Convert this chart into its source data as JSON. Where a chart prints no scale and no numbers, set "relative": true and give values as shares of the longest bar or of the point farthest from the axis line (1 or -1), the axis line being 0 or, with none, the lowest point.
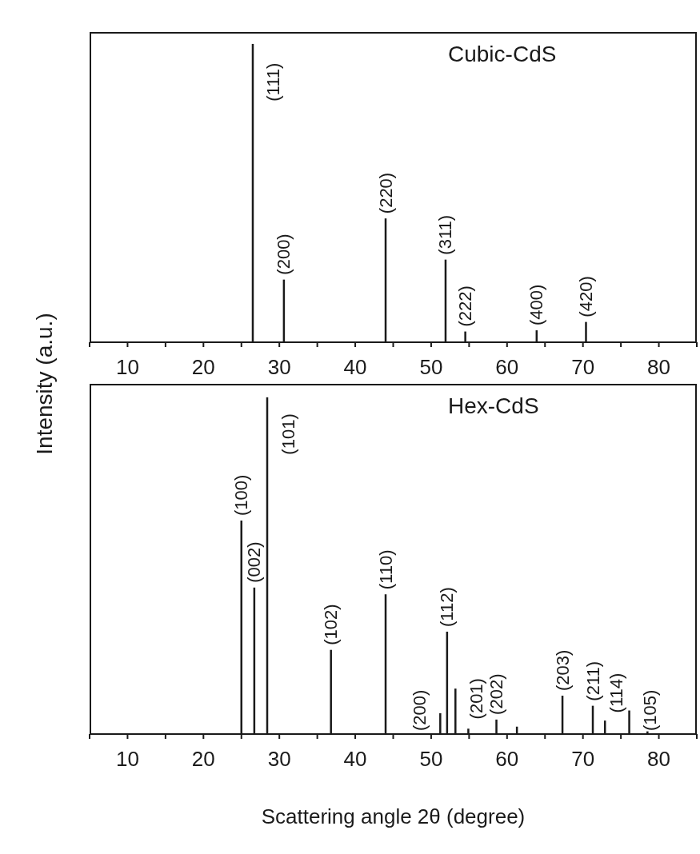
{
  "chart_data": [
    {
      "type": "bar",
      "title": "Cubic-CdS",
      "ylabel": "Intensity (a.u.)",
      "relative": true,
      "tick_labels": "x",
      "color": "#1a1a1a",
      "x": [
        26.5,
        30.6,
        44.0,
        51.9,
        54.5,
        63.9,
        70.4
      ],
      "values": [
        1,
        0.21,
        0.415,
        0.277,
        0.036,
        0.04,
        0.068
      ],
      "xlim": [
        5,
        85
      ],
      "xticks": [
        {
          "value": 5,
          "label": null
        },
        10,
        {
          "value": 15,
          "label": null
        },
        20,
        {
          "value": 25,
          "label": null
        },
        30,
        {
          "value": 35,
          "label": null
        },
        40,
        {
          "value": 45,
          "label": null
        },
        50,
        {
          "value": 55,
          "label": null
        },
        60,
        {
          "value": 65,
          "label": null
        },
        70,
        {
          "value": 75,
          "label": null
        },
        80,
        {
          "value": 85,
          "label": null
        }
      ],
      "annotations": [
        {
          "text": "(111)",
          "x": 26.5,
          "y": 1
        },
        {
          "text": "(200)",
          "x": 30.6,
          "y": 0.21
        },
        {
          "text": "(220)",
          "x": 44.0,
          "y": 0.415
        },
        {
          "text": "(311)",
          "x": 51.9,
          "y": 0.277
        },
        {
          "text": "(222)",
          "x": 54.5,
          "y": 0.036
        },
        {
          "text": "(400)",
          "x": 63.9,
          "y": 0.04
        },
        {
          "text": "(420)",
          "x": 70.4,
          "y": 0.068
        }
      ]
    },
    {
      "type": "bar",
      "title": "Hex-CdS",
      "xlabel": "Scattering angle 2θ (degree)",
      "relative": true,
      "tick_labels": "x",
      "color": "#1a1a1a",
      "x": [
        25.0,
        26.7,
        28.4,
        36.8,
        44.0,
        51.2,
        52.1,
        53.2,
        54.9,
        58.6,
        61.3,
        67.3,
        71.3,
        72.9,
        76.1,
        78.5
      ],
      "values": [
        0.634,
        0.435,
        1,
        0.25,
        0.415,
        0.062,
        0.304,
        0.135,
        0.016,
        0.043,
        0.022,
        0.114,
        0.084,
        0.04,
        0.07,
        0.008
      ],
      "xlim": [
        5,
        85
      ],
      "xticks": [
        {
          "value": 5,
          "label": null
        },
        10,
        {
          "value": 15,
          "label": null
        },
        20,
        {
          "value": 25,
          "label": null
        },
        30,
        {
          "value": 35,
          "label": null
        },
        40,
        {
          "value": 45,
          "label": null
        },
        50,
        {
          "value": 55,
          "label": null
        },
        60,
        {
          "value": 65,
          "label": null
        },
        70,
        {
          "value": 75,
          "label": null
        },
        80,
        {
          "value": 85,
          "label": null
        }
      ],
      "annotations": [
        {
          "text": "(100)",
          "x": 25.0,
          "y": 0.634
        },
        {
          "text": "(002)",
          "x": 26.7,
          "y": 0.435
        },
        {
          "text": "(101)",
          "x": 28.4,
          "y": 1
        },
        {
          "text": "(102)",
          "x": 36.8,
          "y": 0.25
        },
        {
          "text": "(110)",
          "x": 44.0,
          "y": 0.415
        },
        {
          "text": "(200)",
          "x": 51.2,
          "y": 0.062
        },
        {
          "text": "(112)",
          "x": 52.1,
          "y": 0.304
        },
        {
          "text": "(201)",
          "x": 53.2,
          "y": 0.135
        },
        {
          "text": "(202)",
          "x": 58.6,
          "y": 0.043
        },
        {
          "text": "(203)",
          "x": 67.3,
          "y": 0.114
        },
        {
          "text": "(211)",
          "x": 71.3,
          "y": 0.084
        },
        {
          "text": "(114)",
          "x": 72.9,
          "y": 0.04
        },
        {
          "text": "(105)",
          "x": 76.1,
          "y": 0.07
        }
      ]
    }
  ]
}
